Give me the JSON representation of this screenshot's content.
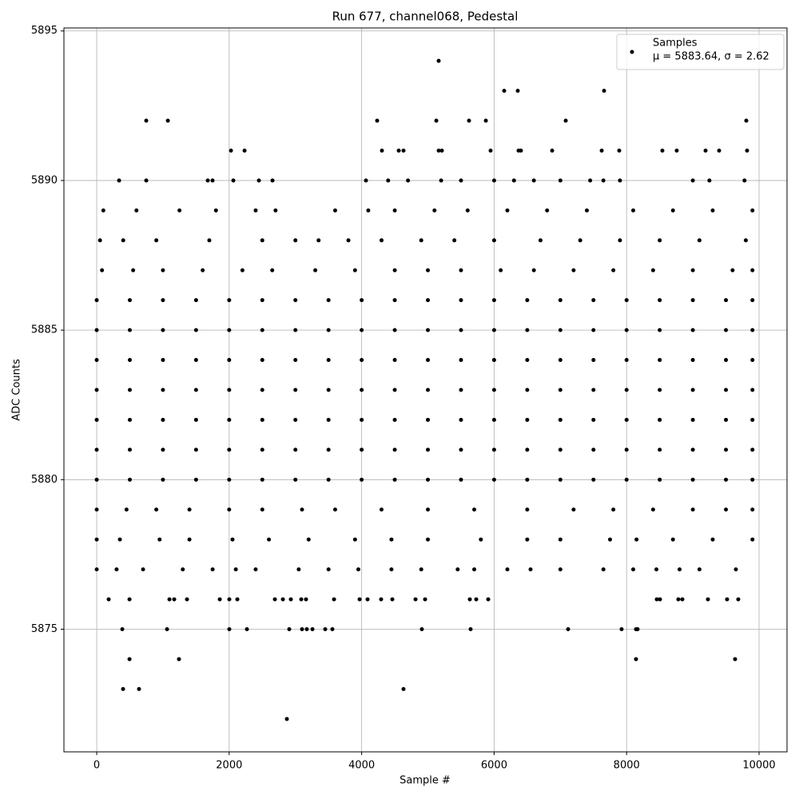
{
  "chart_data": {
    "type": "scatter",
    "title": "Run 677, channel068, Pedestal",
    "x_label": "Sample #",
    "y_label": "ADC Counts",
    "xlim": [
      -495,
      10422
    ],
    "ylim": [
      5870.9,
      5895.1
    ],
    "xticks": [
      0,
      2000,
      4000,
      6000,
      8000,
      10000
    ],
    "yticks": [
      5875,
      5880,
      5885,
      5890,
      5895
    ],
    "grid": true,
    "legend": "upper right",
    "legend_note": "μ = 5883.64, σ = 2.62",
    "series": [
      {
        "name": "Samples",
        "color": "#000000",
        "x": [
          5163,
          6152,
          6357,
          7660,
          748,
          1074,
          4234,
          5127,
          5621,
          5875,
          7081,
          9807,
          2027,
          2232,
          4306,
          4560,
          4632,
          5163,
          5211,
          5947,
          6369,
          6405,
          6876,
          7624,
          7889,
          8540,
          8757,
          9192,
          9397,
          9819,
          338,
          748,
          1677,
          1749,
          2063,
          2449,
          2654,
          4065,
          4400,
          4700,
          5200,
          5500,
          6000,
          6300,
          6600,
          7000,
          7450,
          7650,
          7900,
          9000,
          9250,
          9780,
          100,
          600,
          1250,
          1800,
          2400,
          2700,
          3600,
          4100,
          4500,
          5100,
          5600,
          6200,
          6800,
          7400,
          8100,
          8700,
          9300,
          9900,
          50,
          400,
          900,
          1700,
          2500,
          3000,
          3350,
          3800,
          4300,
          4900,
          5400,
          6000,
          6700,
          7300,
          7900,
          8500,
          9100,
          9800,
          80,
          550,
          1000,
          1600,
          2200,
          2650,
          3300,
          3900,
          4500,
          5000,
          5500,
          6100,
          6600,
          7200,
          7800,
          8400,
          9000,
          9600,
          9900,
          0,
          500,
          1000,
          1500,
          2000,
          2500,
          3000,
          3500,
          4000,
          4500,
          5000,
          5500,
          6000,
          6500,
          7000,
          7500,
          8000,
          8500,
          9000,
          9500,
          9900,
          0,
          500,
          1000,
          1500,
          2000,
          2500,
          3000,
          3500,
          4000,
          4500,
          5000,
          5500,
          6000,
          6500,
          7000,
          7500,
          8000,
          8500,
          9000,
          9500,
          9900,
          0,
          500,
          1000,
          1500,
          2000,
          2500,
          3000,
          3500,
          4000,
          4500,
          5000,
          5500,
          6000,
          6500,
          7000,
          7500,
          8000,
          8500,
          9000,
          9500,
          9900,
          0,
          500,
          1000,
          1500,
          2000,
          2500,
          3000,
          3500,
          4000,
          4500,
          5000,
          5500,
          6000,
          6500,
          7000,
          7500,
          8000,
          8500,
          9000,
          9500,
          9900,
          0,
          500,
          1000,
          1500,
          2000,
          2500,
          3000,
          3500,
          4000,
          4500,
          5000,
          5500,
          6000,
          6500,
          7000,
          7500,
          8000,
          8500,
          9000,
          9500,
          9900,
          0,
          500,
          1000,
          1500,
          2000,
          2500,
          3000,
          3500,
          4000,
          4500,
          5000,
          5500,
          6000,
          6500,
          7000,
          7500,
          8000,
          8500,
          9000,
          9500,
          9900,
          0,
          500,
          1000,
          1500,
          2000,
          2500,
          3000,
          3500,
          4000,
          4500,
          5000,
          5500,
          6000,
          6500,
          7000,
          7500,
          8000,
          8500,
          9000,
          9500,
          9900,
          0,
          450,
          900,
          1400,
          2000,
          2500,
          3100,
          3600,
          4300,
          5000,
          5700,
          6500,
          7200,
          7800,
          8400,
          9000,
          9500,
          9900,
          0,
          350,
          950,
          1400,
          2050,
          2600,
          3200,
          3900,
          4450,
          5000,
          5800,
          6500,
          7000,
          7750,
          8150,
          8700,
          9300,
          9900,
          0,
          300,
          700,
          1300,
          1750,
          2100,
          2400,
          3050,
          3500,
          3950,
          4450,
          4900,
          5450,
          5700,
          6200,
          6550,
          7000,
          7650,
          8100,
          8450,
          8800,
          9100,
          9650,
          181,
          495,
          1098,
          1170,
          1363,
          1858,
          2002,
          2123,
          2690,
          2811,
          2931,
          3088,
          3160,
          3583,
          3969,
          4089,
          4294,
          4463,
          4813,
          4958,
          5633,
          5730,
          5911,
          8456,
          8504,
          8781,
          8842,
          9228,
          9517,
          9686,
          386,
          1062,
          2002,
          2268,
          2907,
          3100,
          3172,
          3257,
          3450,
          3558,
          4909,
          5645,
          7117,
          7925,
          8142,
          8166,
          495,
          1242,
          8142,
          9638,
          398,
          639,
          4632,
          2871
        ],
        "values": [
          5894,
          5893,
          5893,
          5893,
          5892,
          5892,
          5892,
          5892,
          5892,
          5892,
          5892,
          5892,
          5891,
          5891,
          5891,
          5891,
          5891,
          5891,
          5891,
          5891,
          5891,
          5891,
          5891,
          5891,
          5891,
          5891,
          5891,
          5891,
          5891,
          5891,
          5890,
          5890,
          5890,
          5890,
          5890,
          5890,
          5890,
          5890,
          5890,
          5890,
          5890,
          5890,
          5890,
          5890,
          5890,
          5890,
          5890,
          5890,
          5890,
          5890,
          5890,
          5890,
          5889,
          5889,
          5889,
          5889,
          5889,
          5889,
          5889,
          5889,
          5889,
          5889,
          5889,
          5889,
          5889,
          5889,
          5889,
          5889,
          5889,
          5889,
          5888,
          5888,
          5888,
          5888,
          5888,
          5888,
          5888,
          5888,
          5888,
          5888,
          5888,
          5888,
          5888,
          5888,
          5888,
          5888,
          5888,
          5888,
          5887,
          5887,
          5887,
          5887,
          5887,
          5887,
          5887,
          5887,
          5887,
          5887,
          5887,
          5887,
          5887,
          5887,
          5887,
          5887,
          5887,
          5887,
          5887,
          5886,
          5886,
          5886,
          5886,
          5886,
          5886,
          5886,
          5886,
          5886,
          5886,
          5886,
          5886,
          5886,
          5886,
          5886,
          5886,
          5886,
          5886,
          5886,
          5886,
          5886,
          5885,
          5885,
          5885,
          5885,
          5885,
          5885,
          5885,
          5885,
          5885,
          5885,
          5885,
          5885,
          5885,
          5885,
          5885,
          5885,
          5885,
          5885,
          5885,
          5885,
          5885,
          5884,
          5884,
          5884,
          5884,
          5884,
          5884,
          5884,
          5884,
          5884,
          5884,
          5884,
          5884,
          5884,
          5884,
          5884,
          5884,
          5884,
          5884,
          5884,
          5884,
          5884,
          5883,
          5883,
          5883,
          5883,
          5883,
          5883,
          5883,
          5883,
          5883,
          5883,
          5883,
          5883,
          5883,
          5883,
          5883,
          5883,
          5883,
          5883,
          5883,
          5883,
          5883,
          5882,
          5882,
          5882,
          5882,
          5882,
          5882,
          5882,
          5882,
          5882,
          5882,
          5882,
          5882,
          5882,
          5882,
          5882,
          5882,
          5882,
          5882,
          5882,
          5882,
          5882,
          5881,
          5881,
          5881,
          5881,
          5881,
          5881,
          5881,
          5881,
          5881,
          5881,
          5881,
          5881,
          5881,
          5881,
          5881,
          5881,
          5881,
          5881,
          5881,
          5881,
          5881,
          5880,
          5880,
          5880,
          5880,
          5880,
          5880,
          5880,
          5880,
          5880,
          5880,
          5880,
          5880,
          5880,
          5880,
          5880,
          5880,
          5880,
          5880,
          5880,
          5880,
          5880,
          5879,
          5879,
          5879,
          5879,
          5879,
          5879,
          5879,
          5879,
          5879,
          5879,
          5879,
          5879,
          5879,
          5879,
          5879,
          5879,
          5879,
          5879,
          5878,
          5878,
          5878,
          5878,
          5878,
          5878,
          5878,
          5878,
          5878,
          5878,
          5878,
          5878,
          5878,
          5878,
          5878,
          5878,
          5878,
          5878,
          5877,
          5877,
          5877,
          5877,
          5877,
          5877,
          5877,
          5877,
          5877,
          5877,
          5877,
          5877,
          5877,
          5877,
          5877,
          5877,
          5877,
          5877,
          5877,
          5877,
          5877,
          5877,
          5877,
          5876,
          5876,
          5876,
          5876,
          5876,
          5876,
          5876,
          5876,
          5876,
          5876,
          5876,
          5876,
          5876,
          5876,
          5876,
          5876,
          5876,
          5876,
          5876,
          5876,
          5876,
          5876,
          5876,
          5876,
          5876,
          5876,
          5876,
          5876,
          5876,
          5876,
          5875,
          5875,
          5875,
          5875,
          5875,
          5875,
          5875,
          5875,
          5875,
          5875,
          5875,
          5875,
          5875,
          5875,
          5875,
          5875,
          5874,
          5874,
          5874,
          5874,
          5873,
          5873,
          5873,
          5872
        ]
      }
    ]
  }
}
